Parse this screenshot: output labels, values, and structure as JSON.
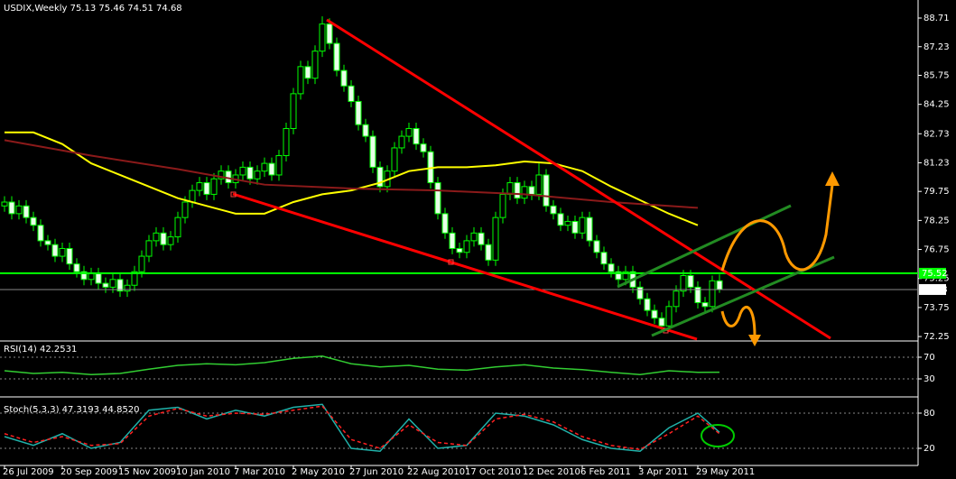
{
  "chart_data": [
    {
      "type": "candlestick",
      "title": "USDIX,Weekly  75.13 75.46 74.51 74.68",
      "up_color": "#000000",
      "down_color": "#e8ffe8",
      "wick_color": "#00ff00",
      "ylim": [
        72.02,
        89.27
      ],
      "yticks": [
        88.71,
        87.23,
        85.75,
        84.25,
        82.73,
        81.23,
        79.75,
        78.25,
        76.75,
        75.25,
        73.75,
        72.25
      ],
      "xticks": [
        {
          "value": 0,
          "label": "26 Jul 2009"
        },
        {
          "value": 8,
          "label": "20 Sep 2009"
        },
        {
          "value": 16,
          "label": "15 Nov 2009"
        },
        {
          "value": 24,
          "label": "10 Jan 2010"
        },
        {
          "value": 32,
          "label": "7 Mar 2010"
        },
        {
          "value": 40,
          "label": "2 May 2010"
        },
        {
          "value": 48,
          "label": "27 Jun 2010"
        },
        {
          "value": 56,
          "label": "22 Aug 2010"
        },
        {
          "value": 64,
          "label": "17 Oct 2010"
        },
        {
          "value": 72,
          "label": "12 Dec 2010"
        },
        {
          "value": 80,
          "label": "6 Feb 2011"
        },
        {
          "value": 88,
          "label": "3 Apr 2011"
        },
        {
          "value": 96,
          "label": "29 May 2011"
        }
      ],
      "hline": {
        "value": 75.52,
        "color": "#00ff00"
      },
      "candles": [
        [
          79.0,
          79.5,
          78.7,
          79.2
        ],
        [
          79.2,
          79.5,
          78.3,
          78.6
        ],
        [
          78.6,
          79.3,
          78.3,
          79.0
        ],
        [
          79.0,
          79.3,
          78.1,
          78.4
        ],
        [
          78.4,
          78.7,
          77.7,
          78.0
        ],
        [
          78.0,
          78.3,
          76.9,
          77.2
        ],
        [
          77.2,
          77.5,
          76.7,
          77.0
        ],
        [
          77.0,
          77.3,
          76.1,
          76.4
        ],
        [
          76.4,
          77.1,
          76.1,
          76.8
        ],
        [
          76.8,
          77.1,
          75.7,
          76.0
        ],
        [
          76.0,
          76.3,
          75.3,
          75.6
        ],
        [
          75.6,
          75.9,
          74.9,
          75.2
        ],
        [
          75.2,
          75.8,
          74.9,
          75.5
        ],
        [
          75.5,
          75.8,
          74.7,
          75.0
        ],
        [
          75.0,
          75.3,
          74.5,
          74.8
        ],
        [
          74.8,
          75.5,
          74.5,
          75.2
        ],
        [
          75.2,
          75.5,
          74.3,
          74.6
        ],
        [
          74.6,
          75.2,
          74.3,
          74.9
        ],
        [
          74.9,
          75.9,
          74.6,
          75.6
        ],
        [
          75.6,
          76.7,
          75.3,
          76.4
        ],
        [
          76.4,
          77.5,
          76.1,
          77.2
        ],
        [
          77.2,
          77.9,
          76.9,
          77.6
        ],
        [
          77.6,
          77.9,
          76.7,
          77.0
        ],
        [
          77.0,
          77.7,
          76.7,
          77.4
        ],
        [
          77.4,
          78.7,
          77.1,
          78.4
        ],
        [
          78.4,
          79.5,
          78.1,
          79.2
        ],
        [
          79.2,
          80.1,
          78.9,
          79.8
        ],
        [
          79.8,
          80.5,
          79.5,
          80.2
        ],
        [
          80.2,
          80.5,
          79.3,
          79.6
        ],
        [
          79.6,
          80.7,
          79.3,
          80.4
        ],
        [
          80.4,
          81.1,
          80.1,
          80.8
        ],
        [
          80.8,
          81.1,
          79.9,
          80.2
        ],
        [
          80.2,
          80.9,
          79.9,
          80.6
        ],
        [
          80.6,
          81.3,
          80.3,
          81.0
        ],
        [
          81.0,
          81.3,
          80.1,
          80.4
        ],
        [
          80.4,
          81.1,
          80.1,
          80.8
        ],
        [
          80.8,
          81.5,
          80.5,
          81.2
        ],
        [
          81.2,
          81.5,
          80.3,
          80.6
        ],
        [
          80.6,
          81.9,
          80.3,
          81.6
        ],
        [
          81.6,
          83.3,
          81.3,
          83.0
        ],
        [
          83.0,
          85.1,
          82.7,
          84.8
        ],
        [
          84.8,
          86.5,
          84.5,
          86.2
        ],
        [
          86.2,
          86.5,
          85.3,
          85.6
        ],
        [
          85.6,
          87.3,
          85.3,
          87.0
        ],
        [
          87.0,
          88.8,
          86.7,
          88.4
        ],
        [
          88.4,
          88.7,
          87.1,
          87.4
        ],
        [
          87.4,
          87.7,
          85.7,
          86.0
        ],
        [
          86.0,
          86.3,
          84.9,
          85.2
        ],
        [
          85.2,
          85.5,
          84.1,
          84.4
        ],
        [
          84.4,
          84.7,
          82.9,
          83.2
        ],
        [
          83.2,
          83.5,
          82.3,
          82.6
        ],
        [
          82.6,
          82.9,
          80.7,
          81.0
        ],
        [
          81.0,
          81.3,
          79.7,
          80.0
        ],
        [
          80.0,
          81.1,
          79.7,
          80.8
        ],
        [
          80.8,
          82.3,
          80.5,
          82.0
        ],
        [
          82.0,
          82.9,
          81.7,
          82.6
        ],
        [
          82.6,
          83.3,
          82.3,
          83.0
        ],
        [
          83.0,
          83.3,
          81.9,
          82.2
        ],
        [
          82.2,
          82.5,
          81.5,
          81.8
        ],
        [
          81.8,
          82.1,
          79.9,
          80.2
        ],
        [
          80.2,
          80.5,
          78.3,
          78.6
        ],
        [
          78.6,
          78.9,
          77.3,
          77.6
        ],
        [
          77.6,
          77.9,
          76.5,
          76.8
        ],
        [
          76.8,
          77.1,
          76.3,
          76.6
        ],
        [
          76.6,
          77.5,
          76.3,
          77.2
        ],
        [
          77.2,
          77.9,
          76.9,
          77.6
        ],
        [
          77.6,
          77.9,
          76.7,
          77.0
        ],
        [
          77.0,
          77.3,
          75.9,
          76.2
        ],
        [
          76.2,
          78.7,
          75.9,
          78.4
        ],
        [
          78.4,
          79.9,
          78.1,
          79.6
        ],
        [
          79.6,
          80.5,
          79.3,
          80.2
        ],
        [
          80.2,
          80.5,
          79.1,
          79.4
        ],
        [
          79.4,
          80.3,
          79.1,
          80.0
        ],
        [
          80.0,
          80.3,
          79.3,
          79.6
        ],
        [
          79.6,
          81.3,
          79.3,
          80.6
        ],
        [
          80.6,
          80.9,
          78.7,
          79.0
        ],
        [
          79.0,
          79.3,
          78.3,
          78.6
        ],
        [
          78.6,
          78.9,
          77.7,
          78.0
        ],
        [
          78.0,
          78.5,
          77.7,
          78.2
        ],
        [
          78.2,
          78.5,
          77.3,
          77.6
        ],
        [
          77.6,
          78.7,
          77.3,
          78.4
        ],
        [
          78.4,
          78.7,
          76.9,
          77.2
        ],
        [
          77.2,
          77.5,
          76.3,
          76.6
        ],
        [
          76.6,
          76.9,
          75.7,
          76.0
        ],
        [
          76.0,
          76.3,
          75.3,
          75.6
        ],
        [
          75.6,
          75.9,
          74.9,
          75.2
        ],
        [
          75.2,
          75.9,
          74.9,
          75.6
        ],
        [
          75.6,
          75.9,
          74.5,
          74.8
        ],
        [
          74.8,
          75.1,
          73.9,
          74.2
        ],
        [
          74.2,
          74.5,
          73.3,
          73.6
        ],
        [
          73.6,
          73.9,
          72.9,
          73.2
        ],
        [
          73.2,
          73.5,
          72.5,
          72.8
        ],
        [
          72.8,
          74.1,
          72.5,
          73.8
        ],
        [
          73.8,
          74.9,
          73.5,
          74.6
        ],
        [
          74.6,
          75.7,
          74.3,
          75.4
        ],
        [
          75.4,
          75.7,
          74.5,
          74.8
        ],
        [
          74.8,
          75.1,
          73.7,
          74.0
        ],
        [
          74.0,
          74.3,
          73.5,
          73.8
        ],
        [
          73.8,
          75.4,
          73.5,
          75.13
        ],
        [
          75.13,
          75.46,
          74.51,
          74.68
        ]
      ],
      "series": [
        {
          "color": "#ffff00",
          "x": [
            0,
            4,
            8,
            12,
            16,
            20,
            24,
            28,
            32,
            36,
            40,
            44,
            48,
            52,
            56,
            60,
            64,
            68,
            72,
            76,
            80,
            84,
            88,
            92,
            96
          ],
          "values": [
            82.8,
            82.8,
            82.2,
            81.2,
            80.6,
            80.0,
            79.4,
            79.0,
            78.6,
            78.6,
            79.2,
            79.6,
            79.8,
            80.2,
            80.8,
            81.0,
            81.0,
            81.1,
            81.3,
            81.2,
            80.8,
            80.0,
            79.3,
            78.6,
            78.0
          ]
        },
        {
          "color": "#8b1a1a",
          "x": [
            0,
            12,
            24,
            36,
            48,
            60,
            72,
            84,
            96
          ],
          "values": [
            82.4,
            81.6,
            80.9,
            80.1,
            79.9,
            79.8,
            79.6,
            79.2,
            78.9
          ]
        }
      ]
    },
    {
      "type": "line",
      "title": "RSI(14) 42.2531",
      "ylim": [
        0,
        100
      ],
      "yticks": [
        70,
        30
      ],
      "series": [
        {
          "color": "#32cd32",
          "x": [
            0,
            4,
            8,
            12,
            16,
            20,
            24,
            28,
            32,
            36,
            40,
            44,
            48,
            52,
            56,
            60,
            64,
            68,
            72,
            76,
            80,
            84,
            88,
            92,
            96,
            99
          ],
          "values": [
            45,
            40,
            42,
            38,
            40,
            48,
            55,
            58,
            56,
            60,
            68,
            72,
            58,
            52,
            55,
            48,
            46,
            52,
            56,
            50,
            47,
            42,
            38,
            45,
            42,
            42.2531
          ]
        }
      ]
    },
    {
      "type": "line",
      "title": "Stoch(5,3,3) 47.3193 44.8520",
      "ylim": [
        0,
        100
      ],
      "yticks": [
        80,
        20
      ],
      "series": [
        {
          "color": "#20b2aa",
          "dash": false,
          "x": [
            0,
            4,
            8,
            12,
            16,
            20,
            24,
            28,
            32,
            36,
            40,
            44,
            48,
            52,
            56,
            60,
            64,
            68,
            72,
            76,
            80,
            84,
            88,
            92,
            96,
            99
          ],
          "values": [
            40,
            25,
            45,
            20,
            30,
            85,
            90,
            70,
            85,
            75,
            90,
            95,
            20,
            15,
            70,
            20,
            25,
            80,
            75,
            60,
            35,
            20,
            15,
            55,
            80,
            47.3193
          ]
        },
        {
          "color": "#ff2020",
          "dash": true,
          "x": [
            0,
            4,
            8,
            12,
            16,
            20,
            24,
            28,
            32,
            36,
            40,
            44,
            48,
            52,
            56,
            60,
            64,
            68,
            72,
            76,
            80,
            84,
            88,
            92,
            96,
            99
          ],
          "values": [
            45,
            30,
            40,
            25,
            28,
            75,
            88,
            75,
            80,
            78,
            85,
            92,
            35,
            20,
            60,
            30,
            25,
            70,
            78,
            65,
            40,
            25,
            18,
            45,
            75,
            44.852
          ]
        }
      ]
    }
  ]
}
